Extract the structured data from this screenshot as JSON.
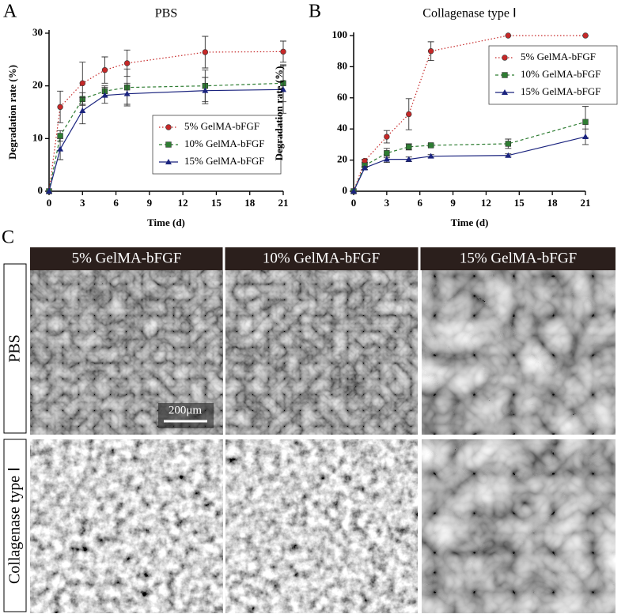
{
  "panel_labels": [
    "A",
    "B",
    "C"
  ],
  "chart_data": [
    {
      "type": "line",
      "title": "PBS",
      "x_label": "Time (d)",
      "y_label": "Degradation rate (%)",
      "x": [
        0,
        1,
        3,
        5,
        7,
        14,
        21
      ],
      "xlim": [
        0,
        21
      ],
      "xticks": [
        0,
        3,
        6,
        9,
        12,
        15,
        18,
        21
      ],
      "ylim": [
        0,
        30
      ],
      "yticks": [
        0,
        10,
        20,
        30
      ],
      "legend": "lower right",
      "series": [
        {
          "name": "5% GelMA-bFGF",
          "color": "#c62828",
          "linestyle": "dotted",
          "marker": "circle",
          "values": [
            0,
            16,
            20.5,
            23,
            24.3,
            26.4,
            26.5
          ],
          "errors": [
            0,
            3,
            4,
            2.5,
            2.5,
            3,
            2
          ]
        },
        {
          "name": "10% GelMA-bFGF",
          "color": "#2e7d32",
          "linestyle": "dashed",
          "marker": "square",
          "values": [
            0,
            10.5,
            17.5,
            19,
            19.7,
            20,
            20.5
          ],
          "errors": [
            0,
            1,
            1.2,
            1,
            3.5,
            3,
            3.5
          ]
        },
        {
          "name": "15% GelMA-bFGF",
          "color": "#1a237e",
          "linestyle": "solid",
          "marker": "triangle",
          "values": [
            0,
            8,
            15.3,
            18.2,
            18.5,
            19.1,
            19.3
          ],
          "errors": [
            0,
            2,
            2.5,
            1.5,
            2,
            2.5,
            4.5
          ]
        }
      ]
    },
    {
      "type": "line",
      "title": "Collagenase type Ⅰ",
      "x_label": "Time (d)",
      "y_label": "Degradation rate (%)",
      "x": [
        0,
        1,
        3,
        5,
        7,
        14,
        21
      ],
      "xlim": [
        0,
        21
      ],
      "xticks": [
        0,
        3,
        6,
        9,
        12,
        15,
        18,
        21
      ],
      "ylim": [
        0,
        100
      ],
      "yticks": [
        0,
        20,
        40,
        60,
        80,
        100
      ],
      "legend": "upper right",
      "series": [
        {
          "name": "5% GelMA-bFGF",
          "color": "#c62828",
          "linestyle": "dotted",
          "marker": "circle",
          "values": [
            0,
            19.5,
            35,
            49.5,
            90,
            100,
            100
          ],
          "errors": [
            0,
            1,
            4,
            10,
            6,
            0,
            0
          ]
        },
        {
          "name": "10% GelMA-bFGF",
          "color": "#2e7d32",
          "linestyle": "dashed",
          "marker": "square",
          "values": [
            0,
            16.5,
            24.5,
            28.5,
            29.5,
            30.5,
            44.5
          ],
          "errors": [
            0,
            1,
            3,
            2,
            1,
            3,
            10
          ]
        },
        {
          "name": "15% GelMA-bFGF",
          "color": "#1a237e",
          "linestyle": "solid",
          "marker": "triangle",
          "values": [
            0,
            15,
            20.5,
            20.5,
            22.5,
            23,
            35
          ],
          "errors": [
            0,
            1,
            2,
            1.5,
            1,
            1,
            5
          ]
        }
      ]
    }
  ],
  "image_grid": {
    "columns": [
      "5% GelMA-bFGF",
      "10% GelMA-bFGF",
      "15% GelMA-bFGF"
    ],
    "rows": [
      "PBS",
      "Collagenase type Ⅰ"
    ],
    "scale_bar": "200μm"
  }
}
